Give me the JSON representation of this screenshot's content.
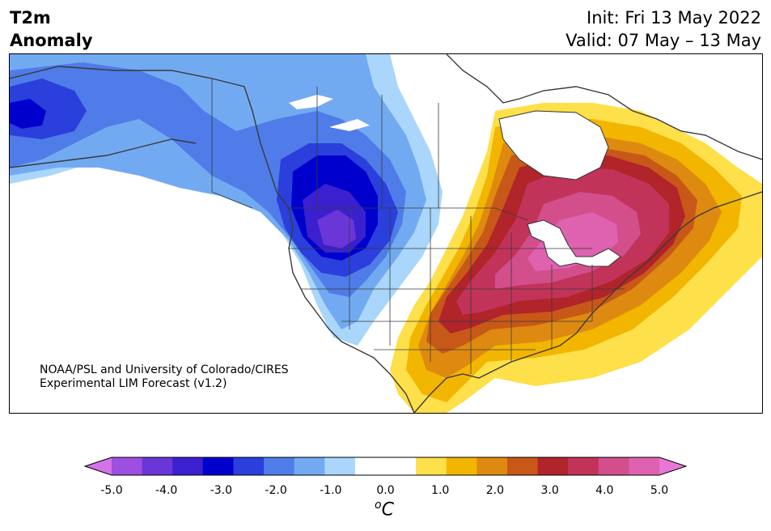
{
  "header": {
    "title_line1": "T2m",
    "title_line2": "Anomaly",
    "init": "Init: Fri 13 May 2022",
    "valid": "Valid: 07 May – 13 May"
  },
  "credit": {
    "line1": "NOAA/PSL and University of Colorado/CIRES",
    "line2": "Experimental LIM Forecast (v1.2)"
  },
  "colorbar": {
    "colors": [
      "#d473e6",
      "#9c4fe0",
      "#6a36d8",
      "#3a20cf",
      "#0000cd",
      "#2a3fdb",
      "#4f7ce8",
      "#72aaf2",
      "#a9d6fa",
      "#ffffff",
      "#ffffff",
      "#fde04a",
      "#f2b500",
      "#de8a10",
      "#c85818",
      "#b0242a",
      "#c2335a",
      "#d24f8c",
      "#de62b0",
      "#e877d6"
    ],
    "ticks": [
      "-5.0",
      "-4.0",
      "-3.0",
      "-2.0",
      "-1.0",
      "0.0",
      "1.0",
      "2.0",
      "3.0",
      "4.0",
      "5.0"
    ],
    "unit_base": "C",
    "unit_sup": "o"
  }
}
